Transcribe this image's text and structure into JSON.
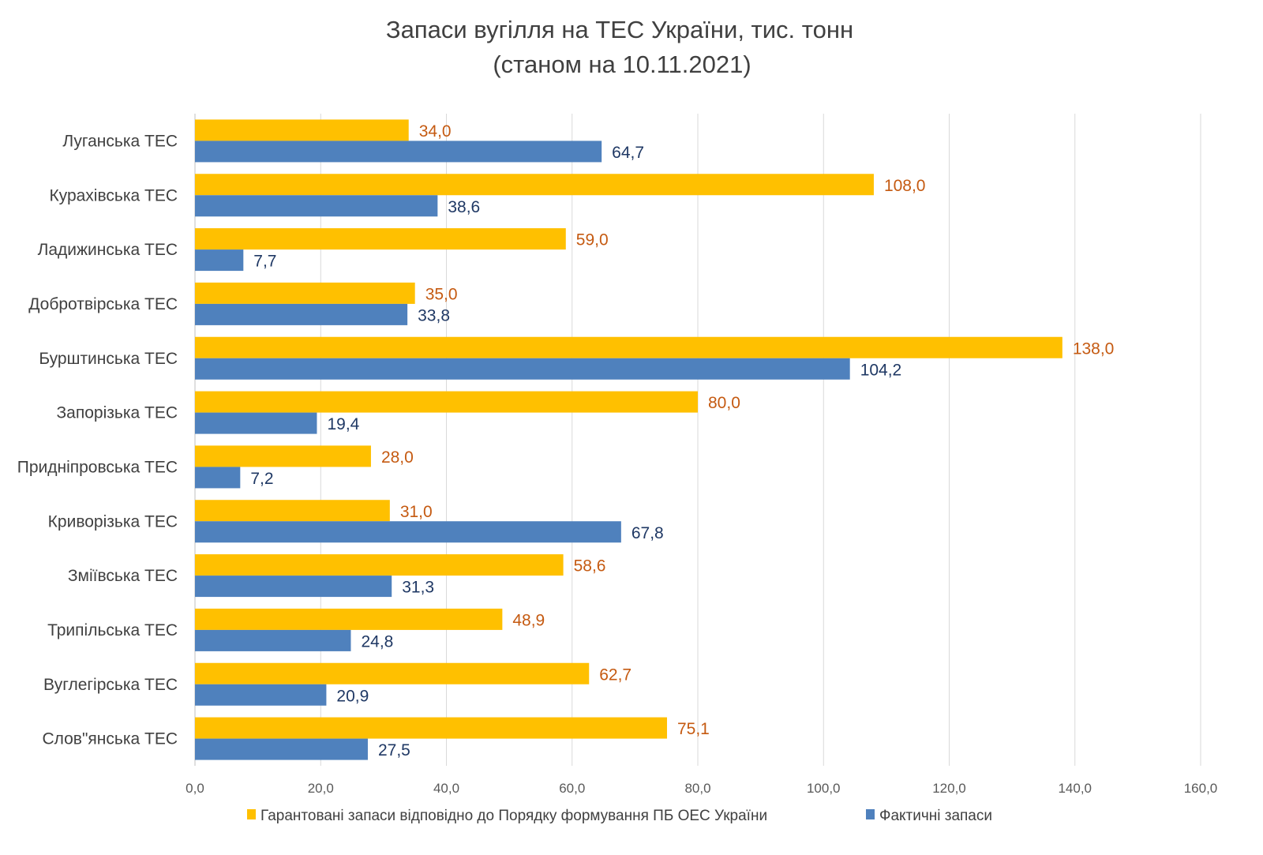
{
  "chart_data": {
    "type": "bar",
    "orientation": "horizontal",
    "title": "Запаси вугілля на ТЕС України, тис. тонн",
    "subtitle": "(станом на 10.11.2021)",
    "categories": [
      "Луганська ТЕС",
      "Курахівська ТЕС",
      "Ладижинська ТЕС",
      "Добротвірська ТЕС",
      "Бурштинська ТЕС",
      "Запорізька ТЕС",
      "Придніпровська ТЕС",
      "Криворізька ТЕС",
      "Зміївська ТЕС",
      "Трипільська ТЕС",
      "Вуглегірська ТЕС",
      "Слов\"янська ТЕС"
    ],
    "series": [
      {
        "name": "Гарантовані запаси відповідно до Порядку формування ПБ ОЕС України",
        "color": "#FFC000",
        "label_color": "#C55A11",
        "values": [
          34.0,
          108.0,
          59.0,
          35.0,
          138.0,
          80.0,
          28.0,
          31.0,
          58.6,
          48.9,
          62.7,
          75.1
        ]
      },
      {
        "name": "Фактичні запаси",
        "color": "#4F81BD",
        "label_color": "#1F3864",
        "values": [
          64.7,
          38.6,
          7.7,
          33.8,
          104.2,
          19.4,
          7.2,
          67.8,
          31.3,
          24.8,
          20.9,
          27.5
        ]
      }
    ],
    "xlim": [
      0,
      160
    ],
    "xticks": [
      "0,0",
      "20,0",
      "40,0",
      "60,0",
      "80,0",
      "100,0",
      "120,0",
      "140,0",
      "160,0"
    ],
    "grid": true,
    "legend": "bottom",
    "xlabel": "",
    "ylabel": ""
  }
}
